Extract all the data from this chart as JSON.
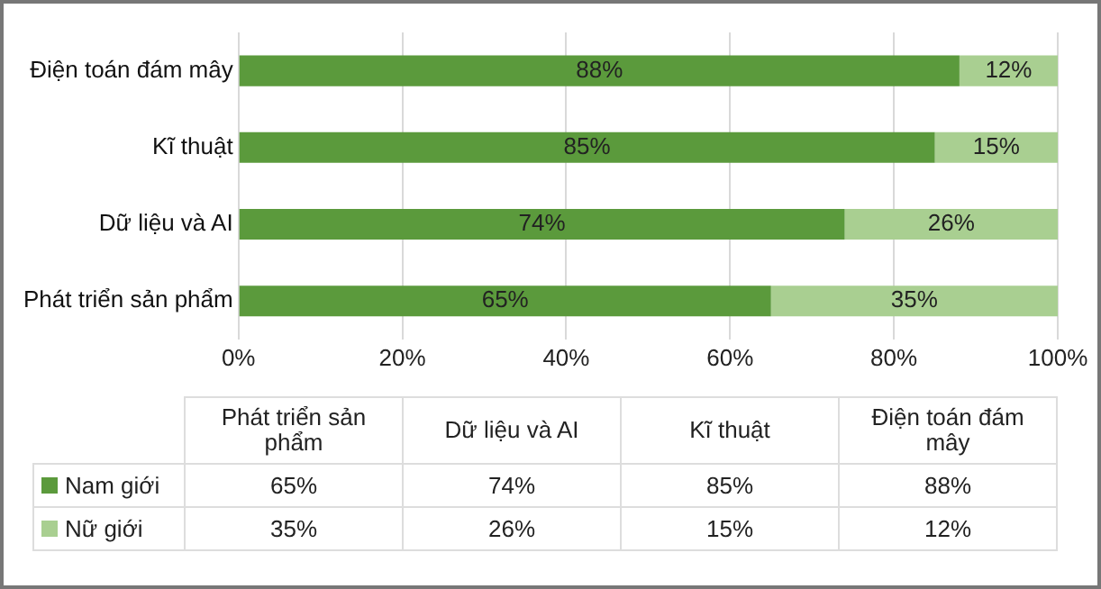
{
  "chart_data": {
    "type": "bar",
    "orientation": "horizontal",
    "stacked": true,
    "categories": [
      "Điện toán đám mây",
      "Kĩ thuật",
      "Dữ liệu và AI",
      "Phát triển sản phẩm"
    ],
    "series": [
      {
        "name": "Nam giới",
        "color": "#5b9a3c",
        "values": [
          88,
          85,
          74,
          65
        ],
        "value_labels": [
          "88%",
          "85%",
          "74%",
          "65%"
        ]
      },
      {
        "name": "Nữ giới",
        "color": "#a9cf91",
        "values": [
          12,
          15,
          26,
          35
        ],
        "value_labels": [
          "12%",
          "15%",
          "26%",
          "35%"
        ]
      }
    ],
    "xlim": [
      0,
      100
    ],
    "xticks": [
      {
        "value": 0,
        "label": "0%"
      },
      {
        "value": 20,
        "label": "20%"
      },
      {
        "value": 40,
        "label": "40%"
      },
      {
        "value": 60,
        "label": "60%"
      },
      {
        "value": 80,
        "label": "80%"
      },
      {
        "value": 100,
        "label": "100%"
      }
    ],
    "grid": "x",
    "legend": "bottom"
  }
}
